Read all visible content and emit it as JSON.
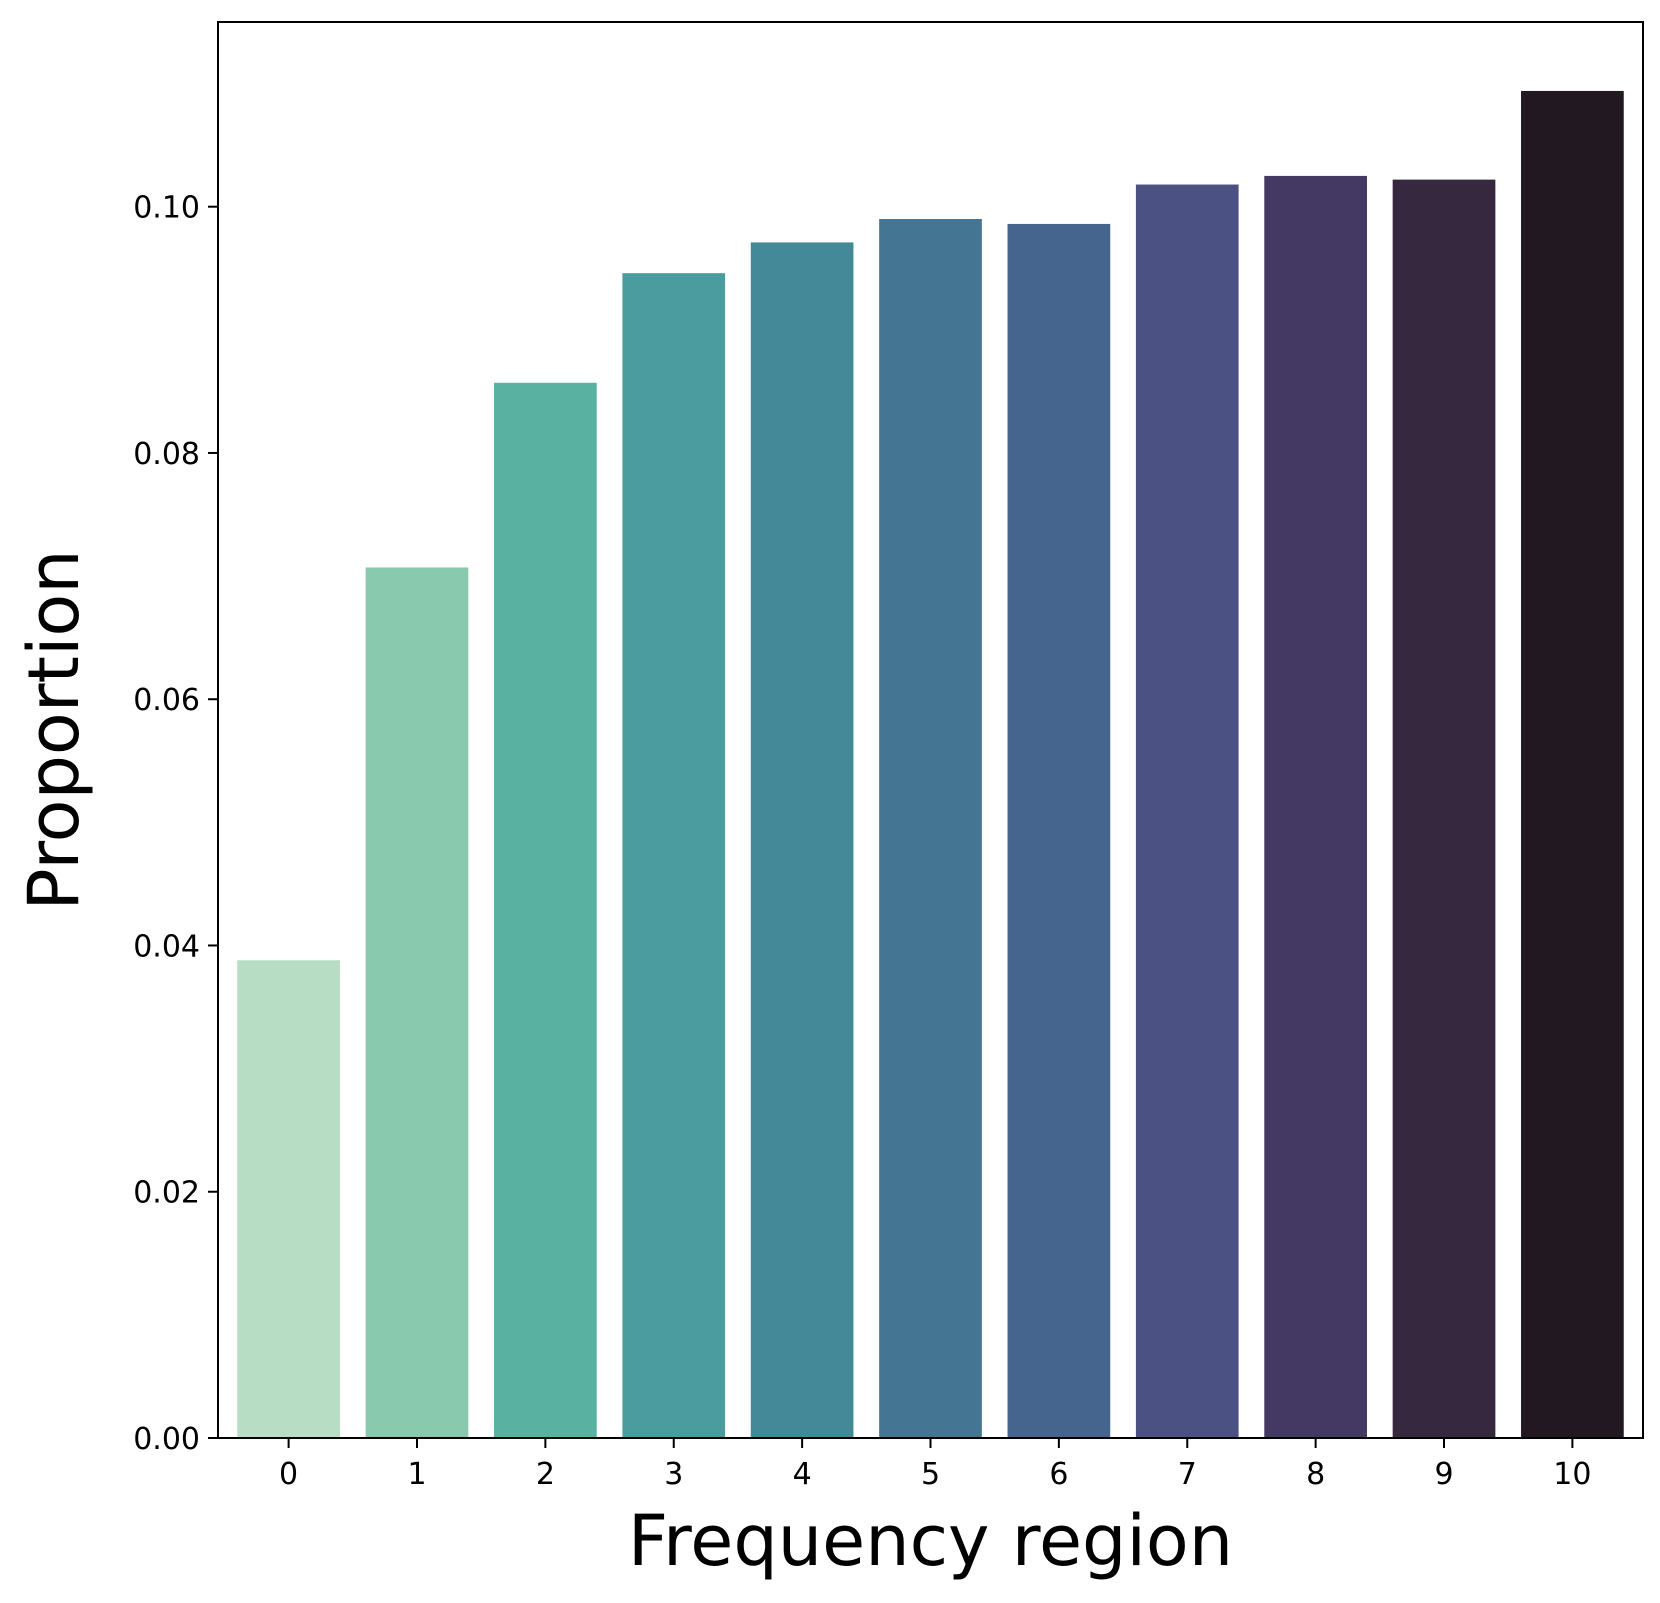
{
  "chart_data": {
    "type": "bar",
    "categories": [
      "0",
      "1",
      "2",
      "3",
      "4",
      "5",
      "6",
      "7",
      "8",
      "9",
      "10"
    ],
    "values": [
      0.0388,
      0.0707,
      0.0857,
      0.0946,
      0.0971,
      0.099,
      0.0986,
      0.1018,
      0.1025,
      0.1022,
      0.1094
    ],
    "colors": [
      "#b8ddc5",
      "#89c9ad",
      "#59b1a2",
      "#4a9c9e",
      "#448998",
      "#447593",
      "#46658e",
      "#4b5183",
      "#443963",
      "#36283f",
      "#221822"
    ],
    "xlabel": "Frequency region",
    "ylabel": "Proportion",
    "ylim": [
      0,
      0.115
    ],
    "yticks": [
      0.0,
      0.02,
      0.04,
      0.06,
      0.08,
      0.1
    ],
    "ytick_labels": [
      "0.00",
      "0.02",
      "0.04",
      "0.06",
      "0.08",
      "0.10"
    ],
    "grid": false,
    "legend": "none"
  }
}
